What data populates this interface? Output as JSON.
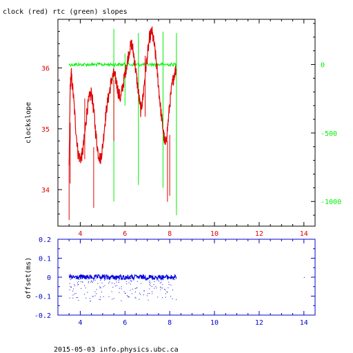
{
  "title": "clock (red) rtc (green) slopes",
  "footer": "2015-05-03 info.physics.ubc.ca",
  "colors": {
    "red": "#e00000",
    "green": "#00ee00",
    "blue": "#0000dd",
    "axis_black": "#000000",
    "axis_blue": "#0000cc"
  },
  "chart_data": [
    {
      "type": "line",
      "title": "clock (red) rtc (green) slopes",
      "xlim": [
        3.0,
        14.5
      ],
      "x_ticks": [
        "4",
        "6",
        "8",
        "10",
        "12",
        "14"
      ],
      "y_left": {
        "label": "clockslope",
        "lim": [
          33.4,
          36.8
        ],
        "ticks": [
          "34",
          "35",
          "36"
        ]
      },
      "y_right": {
        "lim": [
          -1180,
          330
        ],
        "ticks": [
          "0",
          "-500",
          "-1000"
        ]
      },
      "series": [
        {
          "name": "clock",
          "color": "red",
          "axis": "left",
          "x": [
            3.5,
            3.55,
            3.6,
            3.7,
            3.8,
            3.9,
            4.0,
            4.1,
            4.2,
            4.3,
            4.4,
            4.5,
            4.6,
            4.7,
            4.8,
            4.9,
            5.0,
            5.1,
            5.2,
            5.3,
            5.4,
            5.5,
            5.6,
            5.7,
            5.8,
            5.9,
            6.0,
            6.1,
            6.2,
            6.3,
            6.4,
            6.5,
            6.6,
            6.7,
            6.8,
            6.9,
            7.0,
            7.1,
            7.2,
            7.3,
            7.4,
            7.5,
            7.6,
            7.7,
            7.8,
            7.9,
            8.0,
            8.1,
            8.2,
            8.3
          ],
          "y": [
            34.3,
            35.7,
            35.9,
            35.5,
            35.0,
            34.6,
            34.5,
            34.6,
            34.9,
            35.3,
            35.5,
            35.6,
            35.3,
            34.9,
            34.6,
            34.5,
            34.7,
            35.1,
            35.4,
            35.6,
            35.8,
            35.9,
            35.8,
            35.6,
            35.5,
            35.7,
            35.9,
            36.1,
            36.3,
            36.4,
            36.2,
            35.9,
            35.6,
            35.3,
            35.5,
            35.9,
            36.2,
            36.5,
            36.6,
            36.4,
            36.1,
            35.7,
            35.3,
            35.0,
            34.7,
            35.0,
            35.4,
            35.7,
            35.9,
            36.0
          ]
        },
        {
          "name": "rtc",
          "color": "green",
          "axis": "right",
          "x": [
            3.5,
            8.3
          ],
          "y": [
            0,
            0
          ]
        }
      ]
    },
    {
      "type": "scatter",
      "xlim": [
        3.0,
        14.5
      ],
      "x_ticks": [
        "4",
        "6",
        "8",
        "10",
        "12",
        "14"
      ],
      "y_left": {
        "label": "offset(ms)",
        "lim": [
          -0.2,
          0.2
        ],
        "ticks": [
          "0.2",
          "0.1",
          "0",
          "-0.1",
          "-0.2"
        ]
      },
      "series": [
        {
          "name": "offset",
          "color": "blue",
          "x_range": [
            3.5,
            8.3
          ],
          "y_center": 0.0,
          "outlier": {
            "x": 14.0,
            "y": 0.0
          }
        }
      ]
    }
  ]
}
